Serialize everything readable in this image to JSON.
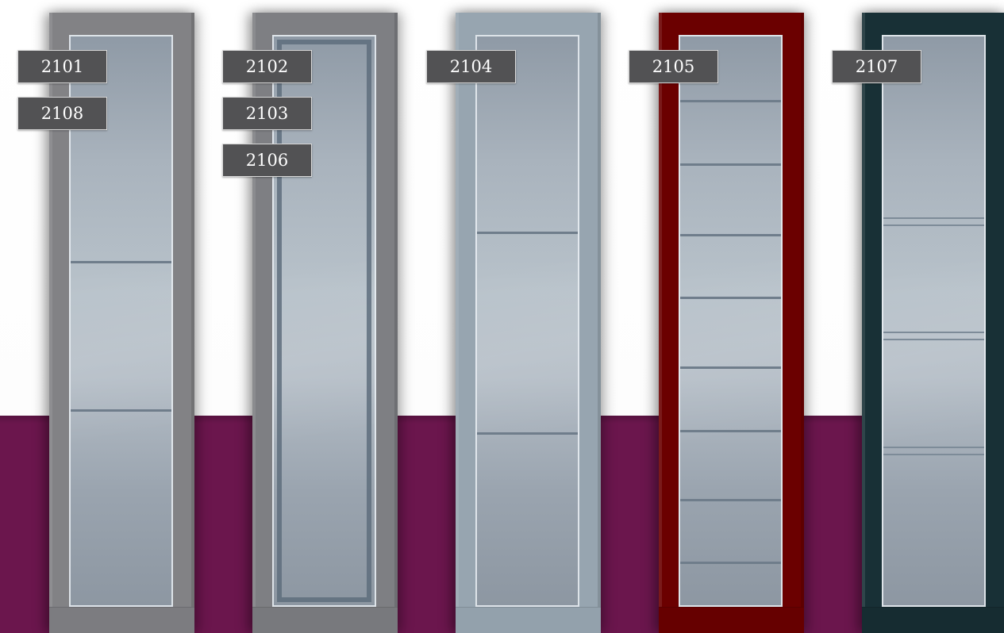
{
  "colors": {
    "wall": "#ffffff",
    "floor_band": "#6b164d",
    "tag_bg": "#525254",
    "tag_text": "#ffffff"
  },
  "doors": [
    {
      "name": "door-grey",
      "frame_color": "#828285",
      "glass_style": "two-bars",
      "labels": [
        "2101",
        "2108"
      ]
    },
    {
      "name": "door-grey-inner-frame",
      "frame_color": "#7e7f83",
      "glass_style": "inner-frame",
      "labels": [
        "2102",
        "2103",
        "2106"
      ]
    },
    {
      "name": "door-light-blue",
      "frame_color": "#97a5b0",
      "glass_style": "two-bars",
      "labels": [
        "2104"
      ]
    },
    {
      "name": "door-red",
      "frame_color": "#6b0000",
      "glass_style": "many-bars",
      "labels": [
        "2105"
      ]
    },
    {
      "name": "door-dark-green",
      "frame_color": "#183036",
      "glass_style": "double-bars",
      "labels": [
        "2107"
      ]
    }
  ]
}
